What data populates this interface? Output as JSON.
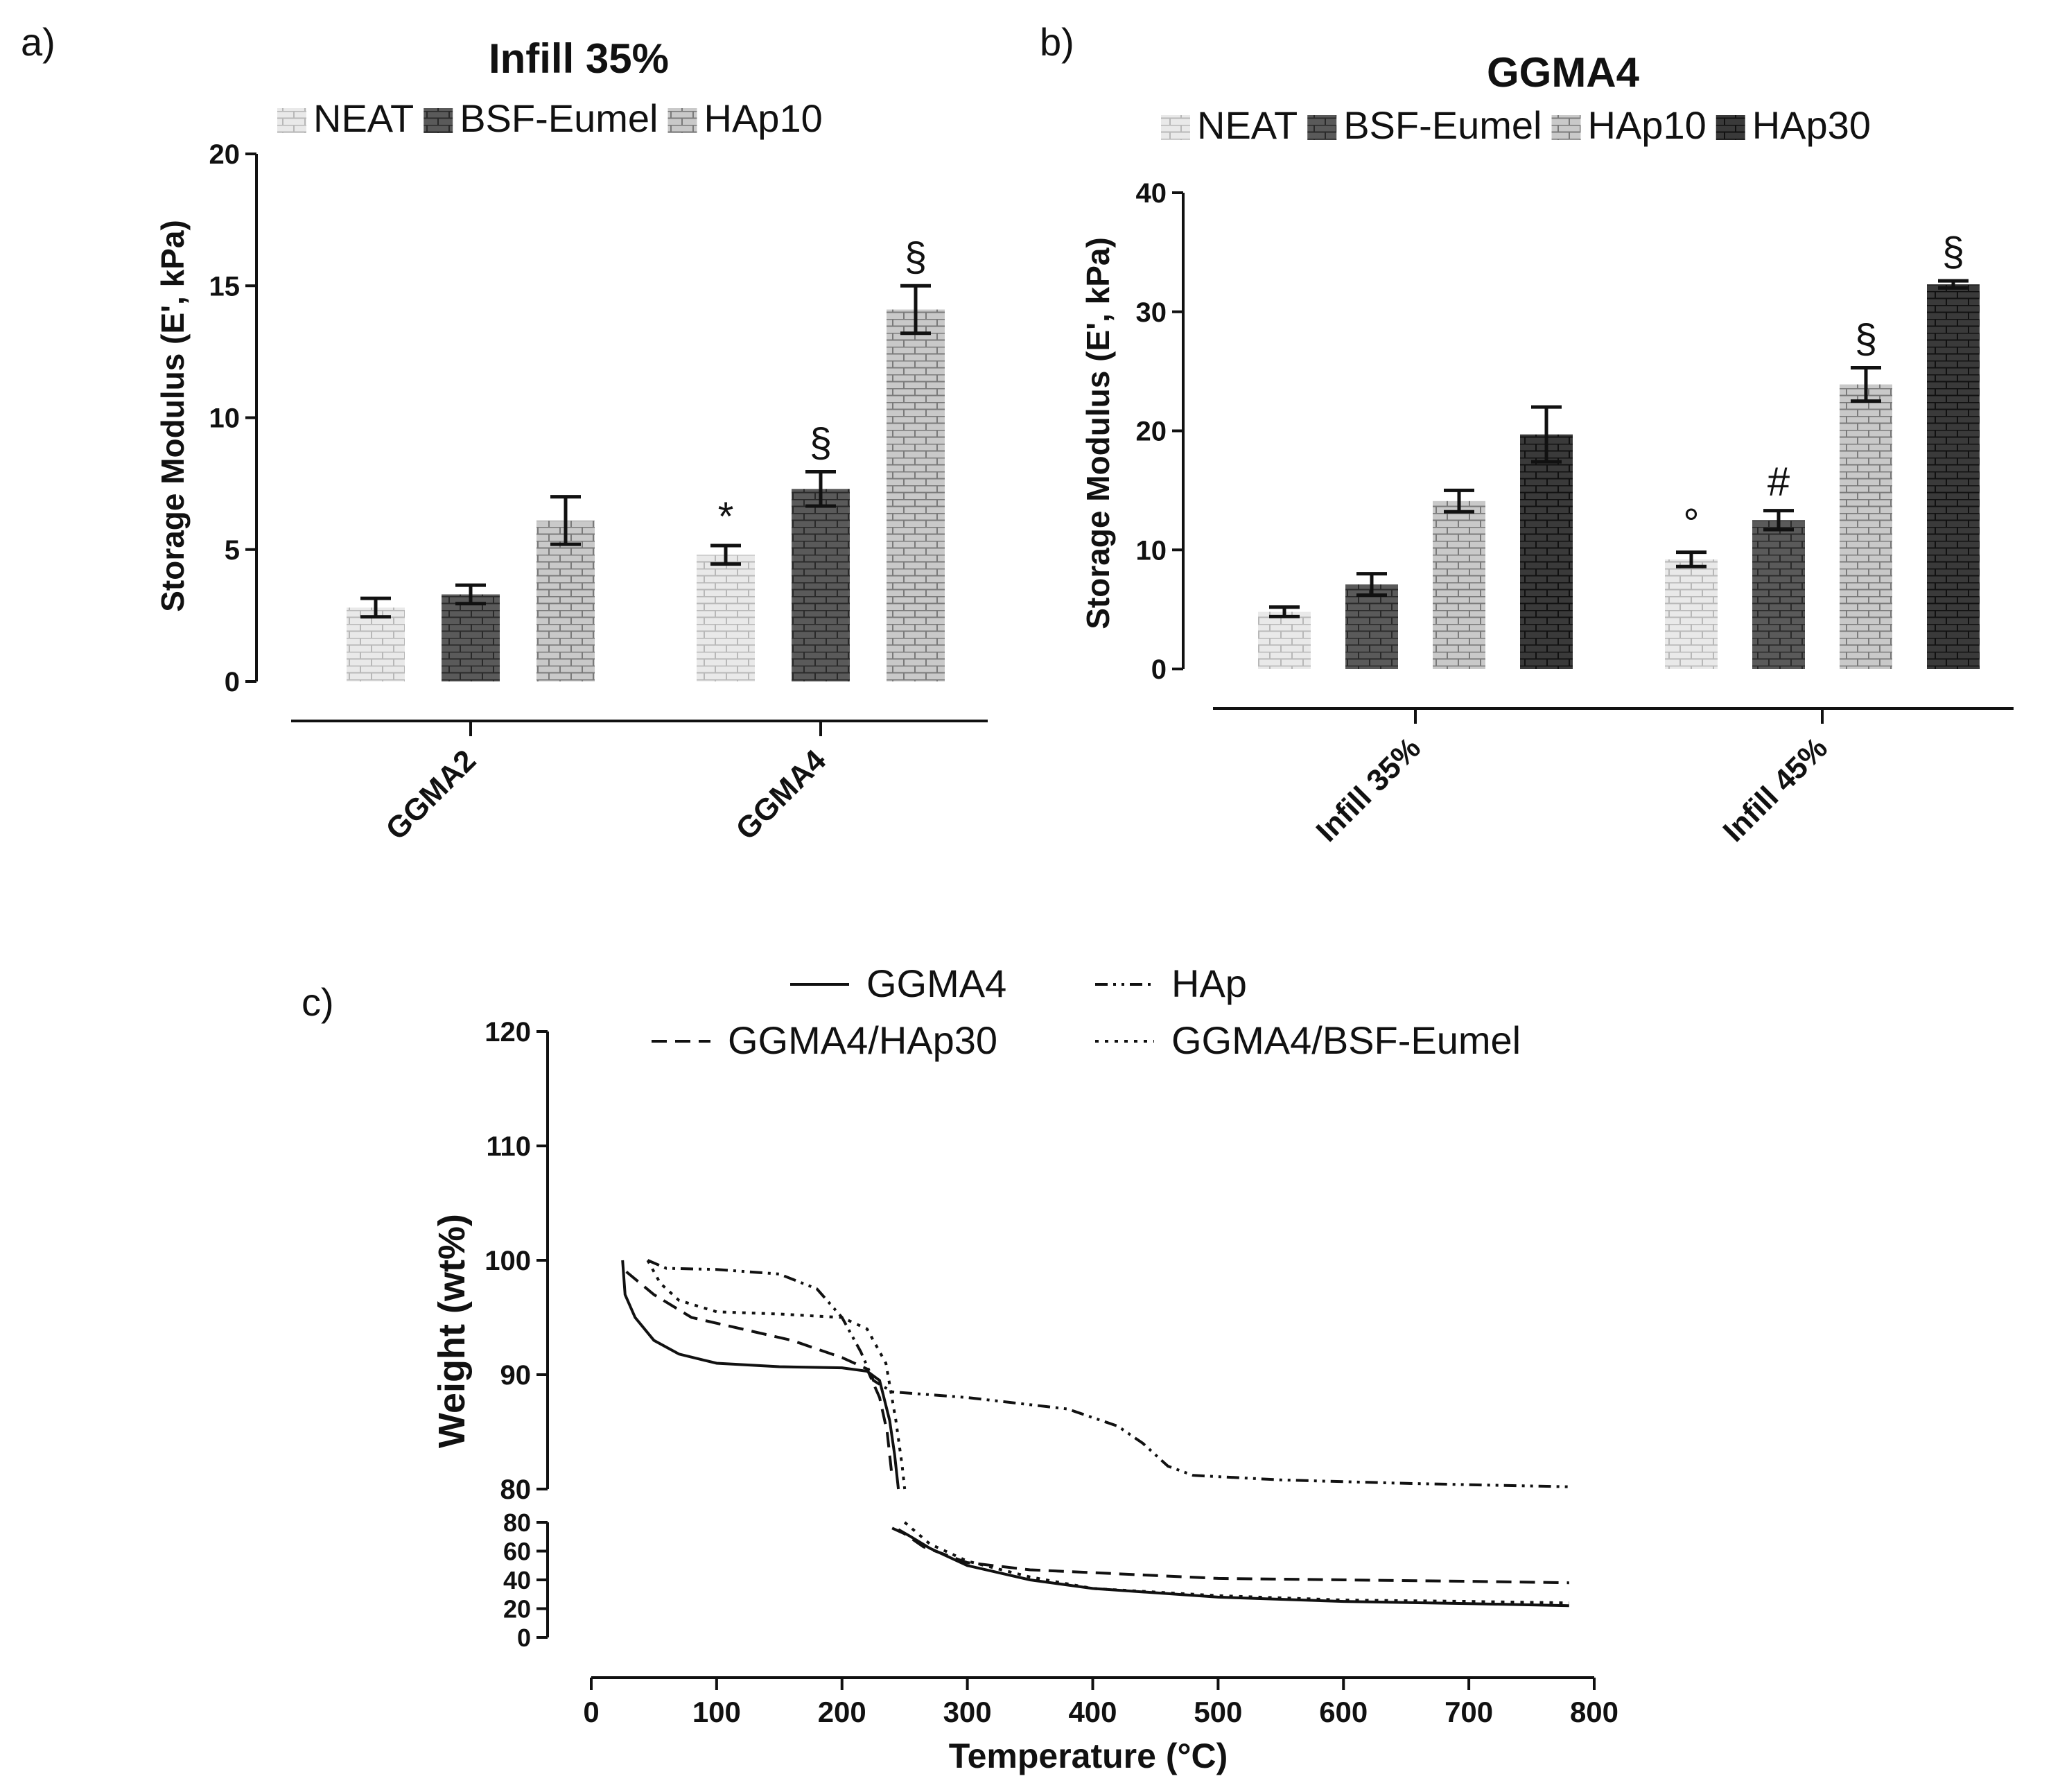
{
  "chart_data": [
    {
      "panel": "a)",
      "type": "bar",
      "title": "Infill 35%",
      "categories": [
        "GGMA2",
        "GGMA4"
      ],
      "series": [
        {
          "name": "NEAT",
          "values": [
            2.8,
            4.8
          ],
          "errors": [
            0.35,
            0.35
          ],
          "marks": [
            "",
            "*"
          ],
          "fill": "light"
        },
        {
          "name": "BSF-Eumel",
          "values": [
            3.3,
            7.3
          ],
          "errors": [
            0.35,
            0.65
          ],
          "marks": [
            "",
            "§"
          ],
          "fill": "dark"
        },
        {
          "name": "HAp10",
          "values": [
            6.1,
            14.1
          ],
          "errors": [
            0.9,
            0.9
          ],
          "marks": [
            "",
            "§"
          ],
          "fill": "mid"
        }
      ],
      "xlabel": "",
      "ylabel": "Storage Modulus (E', kPa)",
      "ylim": [
        0,
        20
      ],
      "yticks": [
        0,
        5,
        10,
        15,
        20
      ]
    },
    {
      "panel": "b)",
      "type": "bar",
      "title": "GGMA4",
      "categories": [
        "Infill 35%",
        "Infill 45%"
      ],
      "series": [
        {
          "name": "NEAT",
          "values": [
            4.8,
            9.2
          ],
          "errors": [
            0.4,
            0.6
          ],
          "marks": [
            "",
            "°"
          ],
          "fill": "light"
        },
        {
          "name": "BSF-Eumel",
          "values": [
            7.1,
            12.5
          ],
          "errors": [
            0.9,
            0.8
          ],
          "marks": [
            "",
            "#"
          ],
          "fill": "dark"
        },
        {
          "name": "HAp10",
          "values": [
            14.1,
            23.9
          ],
          "errors": [
            0.9,
            1.4
          ],
          "marks": [
            "",
            "§"
          ],
          "fill": "mid"
        },
        {
          "name": "HAp30",
          "values": [
            19.7,
            32.3
          ],
          "errors": [
            2.3,
            0.3
          ],
          "marks": [
            "",
            "§"
          ],
          "fill": "darkest"
        }
      ],
      "xlabel": "",
      "ylabel": "Storage Modulus (E', kPa)",
      "ylim": [
        0,
        40
      ],
      "yticks": [
        0,
        10,
        20,
        30,
        40
      ]
    },
    {
      "panel": "c)",
      "type": "line",
      "title": "",
      "xlabel": "Temperature (°C)",
      "ylabel": "Weight (wt%)",
      "xlim": [
        0,
        800
      ],
      "xticks": [
        0,
        100,
        200,
        300,
        400,
        500,
        600,
        700,
        800
      ],
      "ylim_upper": [
        80,
        120
      ],
      "yticks_upper": [
        80,
        90,
        100,
        110,
        120
      ],
      "ylim_lower": [
        0,
        80
      ],
      "yticks_lower": [
        0,
        20,
        40,
        60,
        80
      ],
      "series": [
        {
          "name": "GGMA4",
          "style": "solid",
          "upper": [
            [
              25,
              100
            ],
            [
              27,
              97
            ],
            [
              35,
              95
            ],
            [
              50,
              93
            ],
            [
              70,
              91.8
            ],
            [
              100,
              91
            ],
            [
              150,
              90.7
            ],
            [
              200,
              90.6
            ],
            [
              220,
              90.3
            ],
            [
              230,
              89.5
            ],
            [
              238,
              86
            ],
            [
              242,
              83
            ],
            [
              245,
              80
            ]
          ],
          "lower": [
            [
              245,
              75
            ],
            [
              255,
              70
            ],
            [
              270,
              62
            ],
            [
              300,
              50
            ],
            [
              350,
              40
            ],
            [
              400,
              34
            ],
            [
              500,
              28
            ],
            [
              600,
              25
            ],
            [
              700,
              23.5
            ],
            [
              780,
              22
            ]
          ]
        },
        {
          "name": "HAp",
          "style": "dashdotdot",
          "upper": [
            [
              45,
              100
            ],
            [
              60,
              99.3
            ],
            [
              100,
              99.2
            ],
            [
              150,
              98.8
            ],
            [
              180,
              97.5
            ],
            [
              200,
              95
            ],
            [
              215,
              92
            ],
            [
              225,
              89.5
            ],
            [
              240,
              88.5
            ],
            [
              300,
              88
            ],
            [
              380,
              87
            ],
            [
              420,
              85.5
            ],
            [
              440,
              84
            ],
            [
              460,
              82
            ],
            [
              480,
              81.2
            ],
            [
              550,
              80.8
            ],
            [
              650,
              80.5
            ],
            [
              780,
              80.2
            ]
          ],
          "lower": []
        },
        {
          "name": "GGMA4/HAp30",
          "style": "dashed",
          "upper": [
            [
              28,
              99
            ],
            [
              50,
              97
            ],
            [
              80,
              95
            ],
            [
              120,
              94
            ],
            [
              160,
              93
            ],
            [
              200,
              91.5
            ],
            [
              220,
              90.5
            ],
            [
              230,
              88
            ],
            [
              236,
              85
            ],
            [
              240,
              81
            ]
          ],
          "lower": [
            [
              240,
              76
            ],
            [
              250,
              72
            ],
            [
              265,
              63
            ],
            [
              300,
              52
            ],
            [
              350,
              47
            ],
            [
              400,
              45
            ],
            [
              500,
              41
            ],
            [
              600,
              40
            ],
            [
              700,
              39
            ],
            [
              780,
              38
            ]
          ]
        },
        {
          "name": "GGMA4/BSF-Eumel",
          "style": "dotted",
          "upper": [
            [
              45,
              100
            ],
            [
              55,
              98
            ],
            [
              70,
              96.5
            ],
            [
              100,
              95.5
            ],
            [
              150,
              95.3
            ],
            [
              200,
              95
            ],
            [
              220,
              94
            ],
            [
              235,
              91
            ],
            [
              243,
              86
            ],
            [
              248,
              82
            ],
            [
              250,
              80
            ]
          ],
          "lower": [
            [
              250,
              80
            ],
            [
              258,
              74
            ],
            [
              270,
              65
            ],
            [
              300,
              53
            ],
            [
              350,
              42
            ],
            [
              400,
              34
            ],
            [
              500,
              29
            ],
            [
              600,
              26
            ],
            [
              700,
              25
            ],
            [
              780,
              24
            ]
          ]
        }
      ]
    }
  ]
}
